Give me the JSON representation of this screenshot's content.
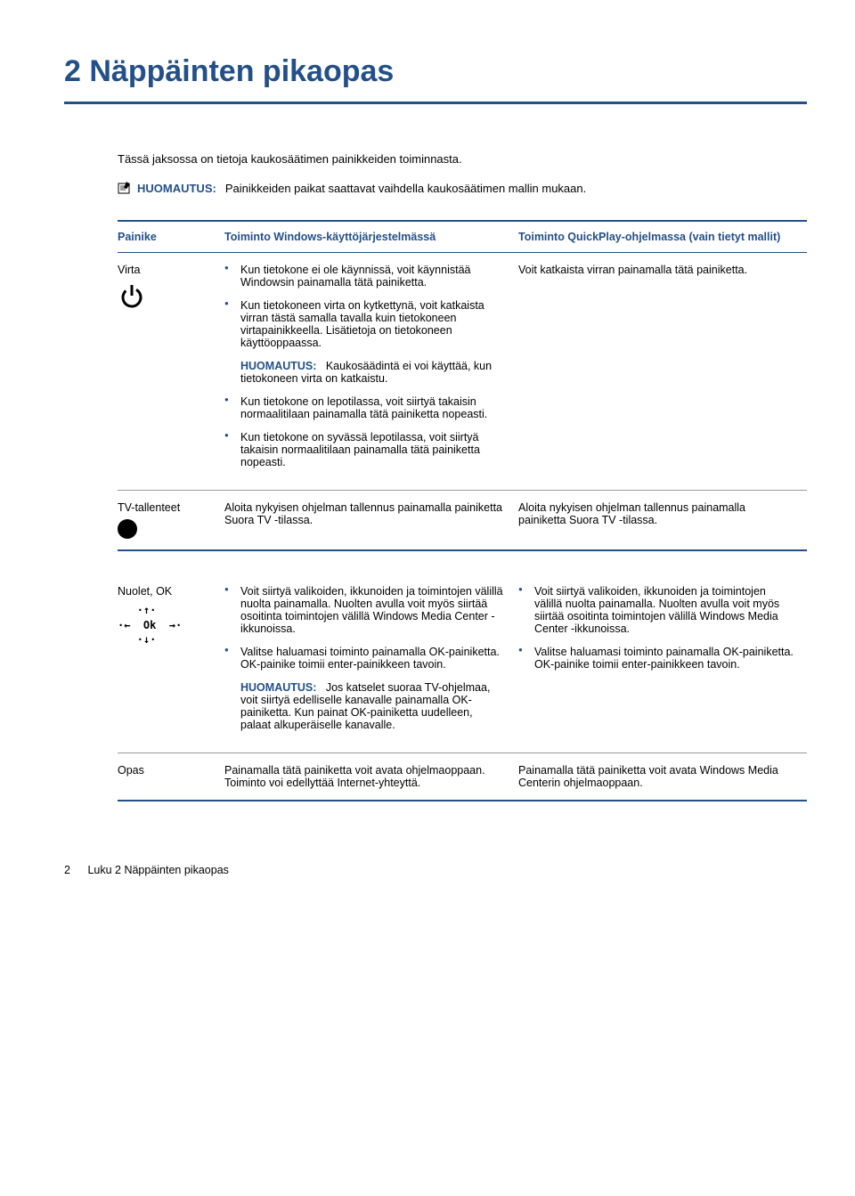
{
  "colors": {
    "heading": "#235089",
    "text": "#000000",
    "th_text": "#235089",
    "rule": "#235089",
    "bullet": "#235089",
    "note_label": "#235089",
    "cell_border": "#999999"
  },
  "chapter_title": "2   Näppäinten pikaopas",
  "intro": "Tässä jaksossa on tietoja kaukosäätimen painikkeiden toiminnasta.",
  "top_note": {
    "label": "HUOMAUTUS:",
    "text": "Painikkeiden paikat saattavat vaihdella kaukosäätimen mallin mukaan."
  },
  "table1": {
    "headers": {
      "button": "Painike",
      "windows": "Toiminto Windows-käyttöjärjestelmässä",
      "quickplay": "Toiminto QuickPlay-ohjelmassa (vain tietyt mallit)"
    },
    "rows": [
      {
        "button_label": "Virta",
        "button_icon": "power",
        "windows": {
          "bullets": [
            "Kun tietokone ei ole käynnissä, voit käynnistää Windowsin painamalla tätä painiketta.",
            "Kun tietokoneen virta on kytkettynä, voit katkaista virran tästä samalla tavalla kuin tietokoneen virtapainikkeella. Lisätietoja on tietokoneen käyttöoppaassa."
          ],
          "note": {
            "label": "HUOMAUTUS:",
            "text": "Kaukosäädintä ei voi käyttää, kun tietokoneen virta on katkaistu."
          },
          "bullets_after": [
            "Kun tietokone on lepotilassa, voit siirtyä takaisin normaalitilaan painamalla tätä painiketta nopeasti.",
            "Kun tietokone on syvässä lepotilassa, voit siirtyä takaisin normaalitilaan painamalla tätä painiketta nopeasti."
          ]
        },
        "quickplay": "Voit katkaista virran painamalla tätä painiketta."
      },
      {
        "button_label": "TV-tallenteet",
        "button_icon": "dot",
        "windows_text": "Aloita nykyisen ohjelman tallennus painamalla painiketta Suora TV -tilassa.",
        "quickplay": "Aloita nykyisen ohjelman tallennus painamalla painiketta Suora TV -tilassa."
      }
    ]
  },
  "table2": {
    "rows": [
      {
        "button_label": "Nuolet, OK",
        "button_icon": "ok",
        "windows": {
          "bullets": [
            "Voit siirtyä valikoiden, ikkunoiden ja toimintojen välillä nuolta painamalla. Nuolten avulla voit myös siirtää osoitinta toimintojen välillä Windows Media Center -ikkunoissa.",
            "Valitse haluamasi toiminto painamalla OK-painiketta. OK-painike toimii enter-painikkeen tavoin."
          ],
          "note": {
            "label": "HUOMAUTUS:",
            "text": "Jos katselet suoraa TV-ohjelmaa, voit siirtyä edelliselle kanavalle painamalla OK-painiketta. Kun painat OK-painiketta uudelleen, palaat alkuperäiselle kanavalle."
          }
        },
        "quickplay": {
          "bullets": [
            "Voit siirtyä valikoiden, ikkunoiden ja toimintojen välillä nuolta painamalla. Nuolten avulla voit myös siirtää osoitinta toimintojen välillä Windows Media Center -ikkunoissa.",
            "Valitse haluamasi toiminto painamalla OK-painiketta. OK-painike toimii enter-painikkeen tavoin."
          ]
        }
      },
      {
        "button_label": "Opas",
        "windows_text": "Painamalla tätä painiketta voit avata ohjelmaoppaan. Toiminto voi edellyttää Internet-yhteyttä.",
        "quickplay": "Painamalla tätä painiketta voit avata Windows Media Centerin ohjelmaoppaan."
      }
    ]
  },
  "footer": {
    "page_number": "2",
    "chapter_ref": "Luku 2   Näppäinten pikaopas"
  }
}
